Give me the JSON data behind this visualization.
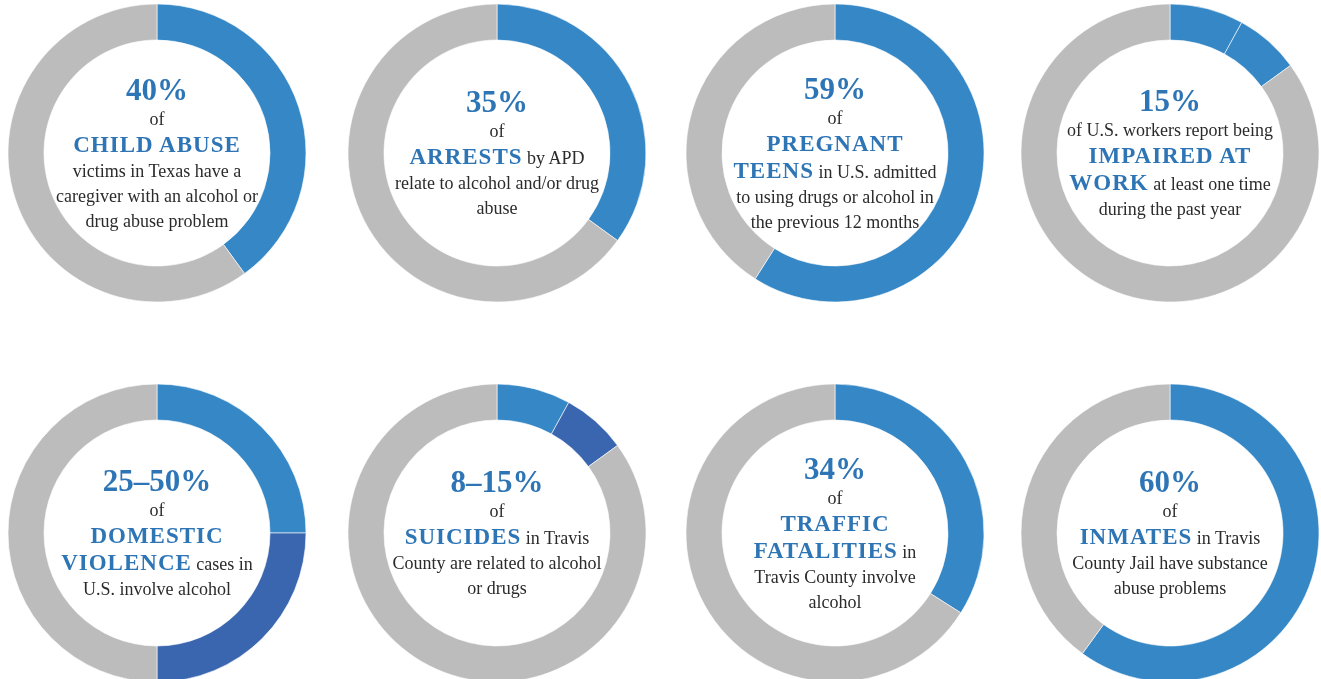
{
  "chart_data": [
    {
      "type": "donut",
      "title": "40%",
      "annotations": [
        "of",
        "CHILD ABUSE",
        "victims in Texas have a caregiver with an alcohol or drug abuse problem"
      ],
      "categories": [
        null,
        null
      ],
      "values": [
        40,
        60
      ],
      "colors": [
        "#3587c6",
        "#bcbcbc"
      ]
    },
    {
      "type": "donut",
      "title": "35%",
      "annotations": [
        "of",
        "ARRESTS",
        "by APD relate to alcohol and/or drug abuse"
      ],
      "categories": [
        null,
        null
      ],
      "values": [
        35,
        65
      ],
      "colors": [
        "#3587c6",
        "#bcbcbc"
      ]
    },
    {
      "type": "donut",
      "title": "59%",
      "annotations": [
        "of",
        "PREGNANT TEENS",
        "in U.S. admitted to using drugs or alcohol in the previous 12 months"
      ],
      "categories": [
        null,
        null
      ],
      "values": [
        59,
        41
      ],
      "colors": [
        "#3587c6",
        "#bcbcbc"
      ]
    },
    {
      "type": "donut",
      "title": "15%",
      "annotations": [
        "of U.S. workers report being",
        "IMPAIRED AT WORK",
        "at least one time during the past year"
      ],
      "categories": [
        null,
        null,
        null
      ],
      "values": [
        8,
        7,
        85
      ],
      "colors": [
        "#3587c6",
        "#3587c6",
        "#bcbcbc"
      ]
    },
    {
      "type": "donut",
      "title": "25–50%",
      "annotations": [
        "of",
        "DOMESTIC VIOLENCE",
        "cases in U.S. involve alcohol"
      ],
      "categories": [
        null,
        null,
        null
      ],
      "values": [
        25,
        25,
        50
      ],
      "colors": [
        "#3587c6",
        "#3a66b0",
        "#bcbcbc"
      ]
    },
    {
      "type": "donut",
      "title": "8–15%",
      "annotations": [
        "of",
        "SUICIDES",
        "in Travis County are related to alcohol or drugs"
      ],
      "categories": [
        null,
        null,
        null
      ],
      "values": [
        8,
        7,
        85
      ],
      "colors": [
        "#3587c6",
        "#3a66b0",
        "#bcbcbc"
      ]
    },
    {
      "type": "donut",
      "title": "34%",
      "annotations": [
        "of",
        "TRAFFIC FATALITIES",
        "in Travis County involve alcohol"
      ],
      "categories": [
        null,
        null
      ],
      "values": [
        34,
        66
      ],
      "colors": [
        "#3587c6",
        "#bcbcbc"
      ]
    },
    {
      "type": "donut",
      "title": "60%",
      "annotations": [
        "of",
        "INMATES",
        "in Travis County Jail have substance abuse problems"
      ],
      "categories": [
        null,
        null
      ],
      "values": [
        60,
        40
      ],
      "colors": [
        "#3587c6",
        "#bcbcbc"
      ]
    }
  ]
}
